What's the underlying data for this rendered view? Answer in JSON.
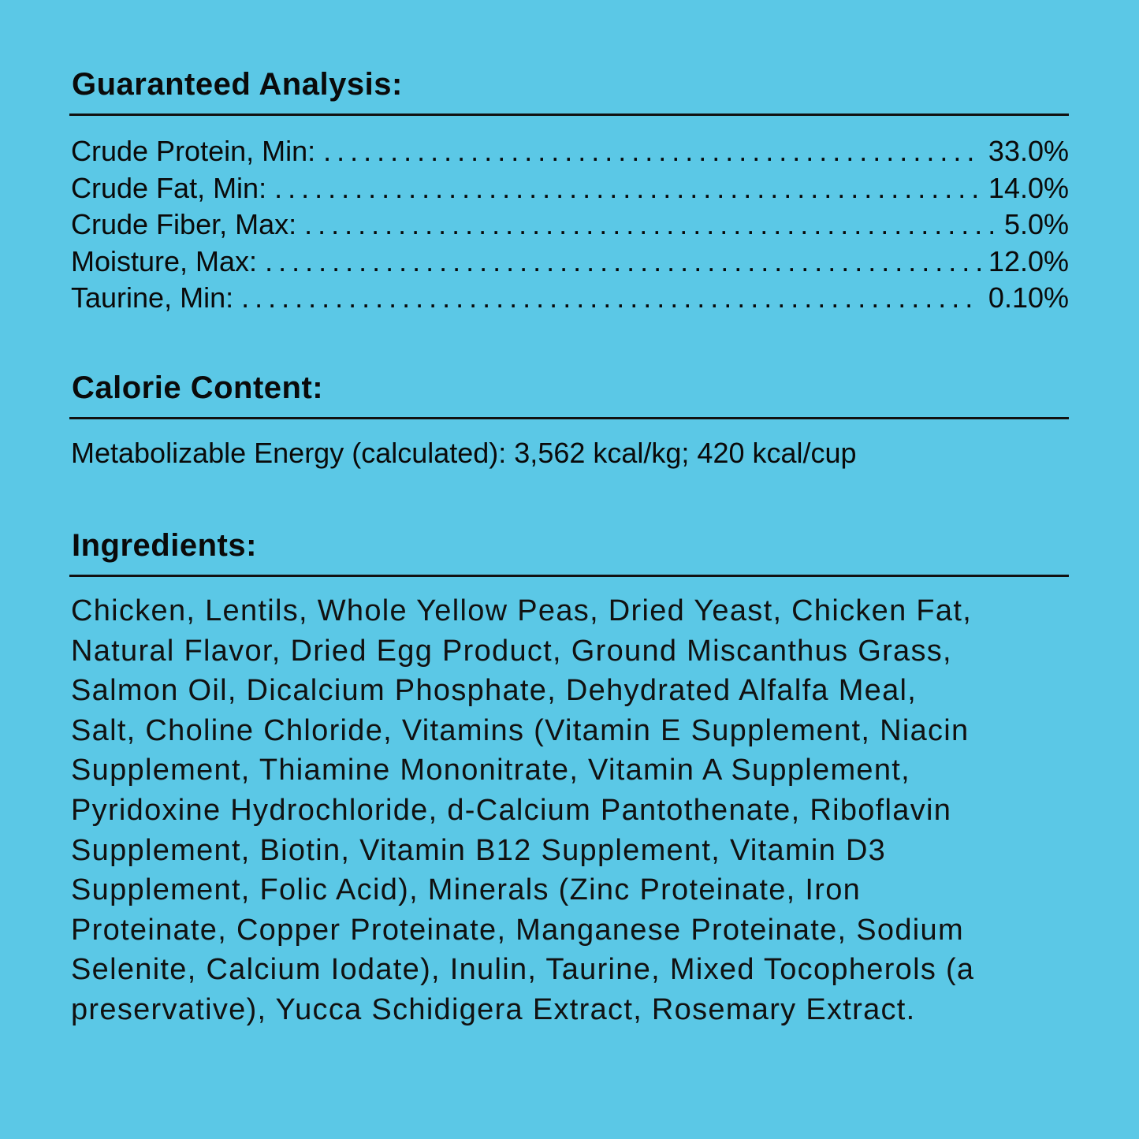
{
  "guaranteed_analysis": {
    "title": "Guaranteed Analysis:",
    "rows": [
      {
        "label": "Crude Protein, Min:",
        "value": "33.0%"
      },
      {
        "label": "Crude Fat, Min:",
        "value": "14.0%"
      },
      {
        "label": "Crude Fiber, Max:",
        "value": "5.0%"
      },
      {
        "label": "Moisture, Max:",
        "value": "12.0%"
      },
      {
        "label": "Taurine, Min:",
        "value": "0.10%"
      }
    ]
  },
  "calorie_content": {
    "title": "Calorie Content:",
    "text": "Metabolizable Energy (calculated): 3,562 kcal/kg; 420 kcal/cup"
  },
  "ingredients": {
    "title": "Ingredients:",
    "lines": [
      "Chicken, Lentils, Whole Yellow Peas, Dried Yeast, Chicken Fat,",
      "Natural Flavor, Dried Egg Product, Ground Miscanthus Grass,",
      "Salmon Oil, Dicalcium Phosphate, Dehydrated Alfalfa Meal,",
      "Salt, Choline Chloride, Vitamins (Vitamin E Supplement, Niacin",
      "Supplement, Thiamine Mononitrate, Vitamin A Supplement,",
      "Pyridoxine Hydrochloride, d-Calcium Pantothenate, Riboflavin",
      "Supplement, Biotin, Vitamin B12 Supplement, Vitamin D3",
      "Supplement, Folic Acid), Minerals (Zinc Proteinate, Iron",
      "Proteinate, Copper Proteinate, Manganese Proteinate, Sodium",
      "Selenite, Calcium Iodate), Inulin, Taurine, Mixed Tocopherols (a",
      "preservative), Yucca Schidigera Extract, Rosemary Extract."
    ]
  },
  "colors": {
    "background": "#5bc8e6",
    "text": "#0a0a0a"
  }
}
